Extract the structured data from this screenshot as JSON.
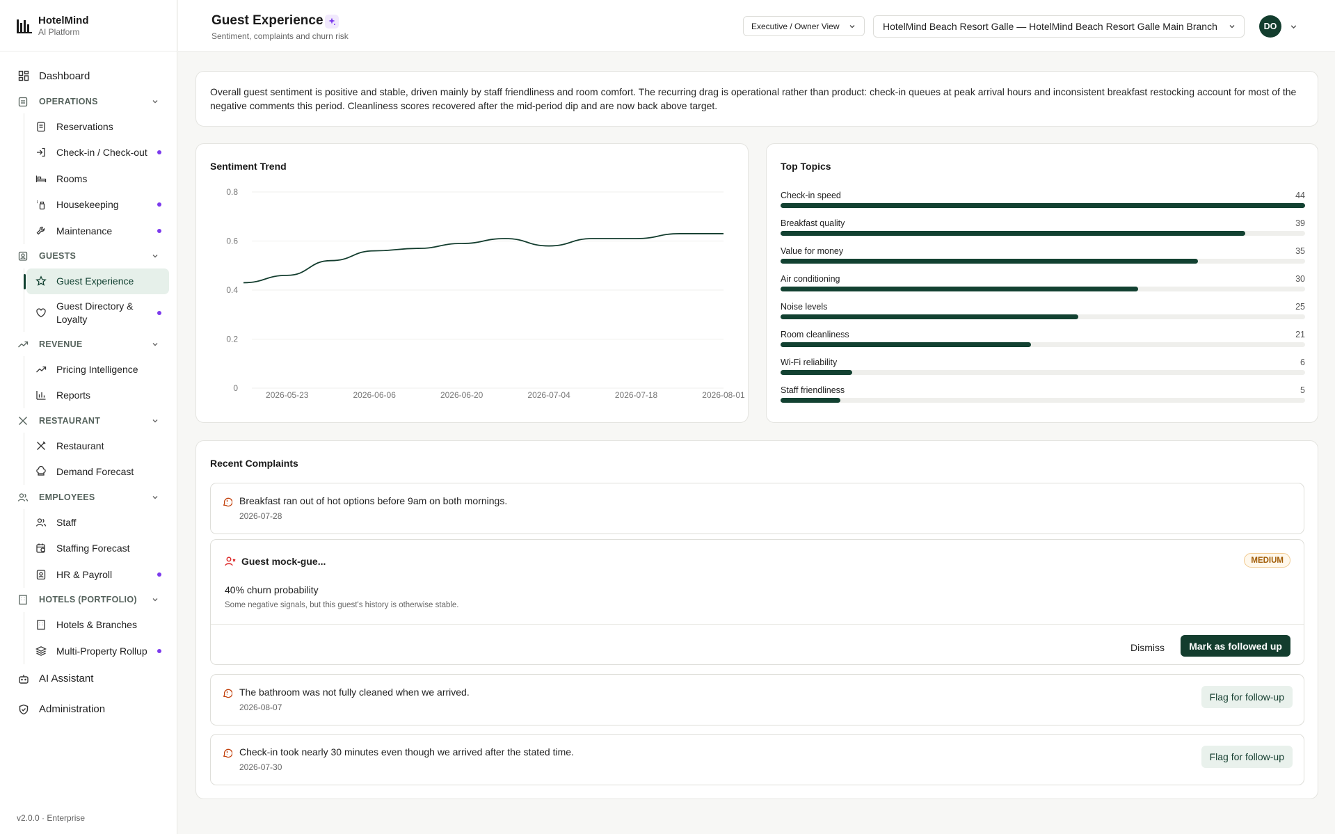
{
  "brand": {
    "name": "HotelMind",
    "sub": "AI Platform"
  },
  "nav": {
    "dashboard": "Dashboard",
    "operations": {
      "label": "OPERATIONS",
      "items": [
        "Reservations",
        "Check-in / Check-out",
        "Rooms",
        "Housekeeping",
        "Maintenance"
      ]
    },
    "guests": {
      "label": "GUESTS",
      "items": [
        "Guest Experience",
        "Guest Directory & Loyalty"
      ]
    },
    "revenue": {
      "label": "REVENUE",
      "items": [
        "Pricing Intelligence",
        "Reports"
      ]
    },
    "restaurant": {
      "label": "RESTAURANT",
      "items": [
        "Restaurant",
        "Demand Forecast"
      ]
    },
    "employees": {
      "label": "EMPLOYEES",
      "items": [
        "Staff",
        "Staffing Forecast",
        "HR & Payroll"
      ]
    },
    "hotels": {
      "label": "HOTELS (PORTFOLIO)",
      "items": [
        "Hotels & Branches",
        "Multi-Property Rollup"
      ]
    },
    "ai_assistant": "AI Assistant",
    "administration": "Administration",
    "version": "v2.0.0 · Enterprise"
  },
  "header": {
    "title": "Guest Experience",
    "subtitle": "Sentiment, complaints and churn risk",
    "role": "Executive / Owner View",
    "hotel": "HotelMind Beach Resort Galle — HotelMind Beach Resort Galle Main Branch",
    "avatar": "DO"
  },
  "summary": "Overall guest sentiment is positive and stable, driven mainly by staff friendliness and room comfort. The recurring drag is operational rather than product: check-in queues at peak arrival hours and inconsistent breakfast restocking account for most of the negative comments this period. Cleanliness scores recovered after the mid-period dip and are now back above target.",
  "trend": {
    "title": "Sentiment Trend"
  },
  "chart_data": [
    {
      "type": "line",
      "title": "Sentiment Trend",
      "ylim": [
        0,
        0.8
      ],
      "yticks": [
        "0",
        "0.2",
        "0.4",
        "0.6",
        "0.8"
      ],
      "xticks": [
        "2026-05-23",
        "2026-06-06",
        "2026-06-20",
        "2026-07-04",
        "2026-07-18",
        "2026-08-01"
      ],
      "series": [
        {
          "x": [
            "2026-05-16",
            "2026-05-23",
            "2026-05-30",
            "2026-06-06",
            "2026-06-13",
            "2026-06-20",
            "2026-06-27",
            "2026-07-04",
            "2026-07-11",
            "2026-07-18",
            "2026-07-25",
            "2026-08-01"
          ],
          "values": [
            0.43,
            0.46,
            0.52,
            0.56,
            0.57,
            0.59,
            0.61,
            0.58,
            0.61,
            0.61,
            0.63,
            0.63
          ]
        }
      ],
      "grid": true
    },
    {
      "type": "bar",
      "title": "Top Topics",
      "categories": [
        "Check-in speed",
        "Breakfast quality",
        "Value for money",
        "Air conditioning",
        "Noise levels",
        "Room cleanliness",
        "Wi-Fi reliability",
        "Staff friendliness"
      ],
      "values": [
        44,
        39,
        35,
        30,
        25,
        21,
        6,
        5
      ]
    }
  ],
  "topics": {
    "title": "Top Topics",
    "items": [
      {
        "label": "Check-in speed",
        "value": "44"
      },
      {
        "label": "Breakfast quality",
        "value": "39"
      },
      {
        "label": "Value for money",
        "value": "35"
      },
      {
        "label": "Air conditioning",
        "value": "30"
      },
      {
        "label": "Noise levels",
        "value": "25"
      },
      {
        "label": "Room cleanliness",
        "value": "21"
      },
      {
        "label": "Wi-Fi reliability",
        "value": "6"
      },
      {
        "label": "Staff friendliness",
        "value": "5"
      }
    ]
  },
  "complaints": {
    "title": "Recent Complaints",
    "items": [
      {
        "text": "Breakfast ran out of hot options before 9am on both mornings.",
        "date": "2026-07-28"
      },
      {
        "text": "The bathroom was not fully cleaned when we arrived.",
        "date": "2026-08-07",
        "action": "Flag for follow-up"
      },
      {
        "text": "Check-in took nearly 30 minutes even though we arrived after the stated time.",
        "date": "2026-07-30",
        "action": "Flag for follow-up"
      }
    ],
    "guest": {
      "name": "Guest mock-gue...",
      "badge": "MEDIUM",
      "churn": "40% churn probability",
      "note": "Some negative signals, but this guest's history is otherwise stable.",
      "dismiss": "Dismiss",
      "follow": "Mark as followed up"
    }
  },
  "colors": {
    "brand": "#133d2e",
    "accent": "#7c3aed",
    "warning": "#c2410c",
    "badge": "#a15c06"
  }
}
